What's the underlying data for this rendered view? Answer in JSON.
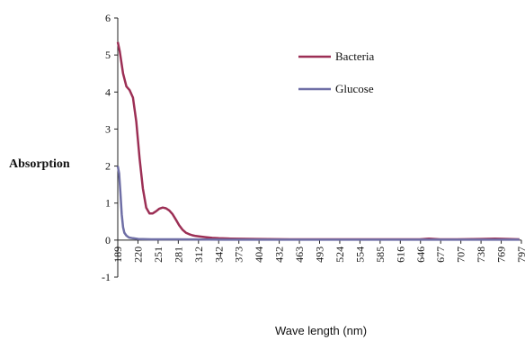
{
  "chart_data": {
    "type": "line",
    "title": "",
    "xlabel": "Wave length (nm)",
    "ylabel": "Absorption",
    "ylim": [
      -1,
      6
    ],
    "yticks": [
      "-1",
      "0",
      "1",
      "2",
      "3",
      "4",
      "5",
      "6"
    ],
    "xlim": [
      189,
      800
    ],
    "xticks": [
      "189",
      "220",
      "251",
      "281",
      "312",
      "342",
      "373",
      "404",
      "432",
      "463",
      "493",
      "524",
      "554",
      "585",
      "616",
      "646",
      "677",
      "707",
      "738",
      "769",
      "797"
    ],
    "legend_position": "top-right",
    "series": [
      {
        "name": "Bacteria",
        "color": "#9c2f55",
        "x": [
          189,
          192,
          197,
          202,
          207,
          212,
          217,
          222,
          227,
          232,
          237,
          242,
          247,
          252,
          257,
          262,
          267,
          272,
          277,
          282,
          287,
          292,
          297,
          302,
          307,
          312,
          322,
          332,
          342,
          360,
          400,
          450,
          500,
          550,
          600,
          646,
          660,
          677,
          700,
          738,
          760,
          780,
          797
        ],
        "y": [
          5.35,
          5.1,
          4.5,
          4.15,
          4.05,
          3.85,
          3.2,
          2.2,
          1.4,
          0.88,
          0.72,
          0.72,
          0.78,
          0.85,
          0.88,
          0.86,
          0.8,
          0.7,
          0.55,
          0.4,
          0.28,
          0.2,
          0.16,
          0.13,
          0.11,
          0.1,
          0.08,
          0.06,
          0.05,
          0.04,
          0.03,
          0.02,
          0.02,
          0.02,
          0.02,
          0.02,
          0.04,
          0.02,
          0.02,
          0.03,
          0.04,
          0.03,
          0.02
        ]
      },
      {
        "name": "Glucose",
        "color": "#6f6fa6",
        "x": [
          189,
          191,
          193,
          195,
          197,
          199,
          202,
          206,
          212,
          220,
          240,
          280,
          350,
          450,
          600,
          797
        ],
        "y": [
          2.0,
          1.8,
          1.3,
          0.7,
          0.35,
          0.2,
          0.12,
          0.07,
          0.05,
          0.03,
          0.02,
          0.02,
          0.01,
          0.01,
          0.01,
          0.01
        ]
      }
    ]
  }
}
